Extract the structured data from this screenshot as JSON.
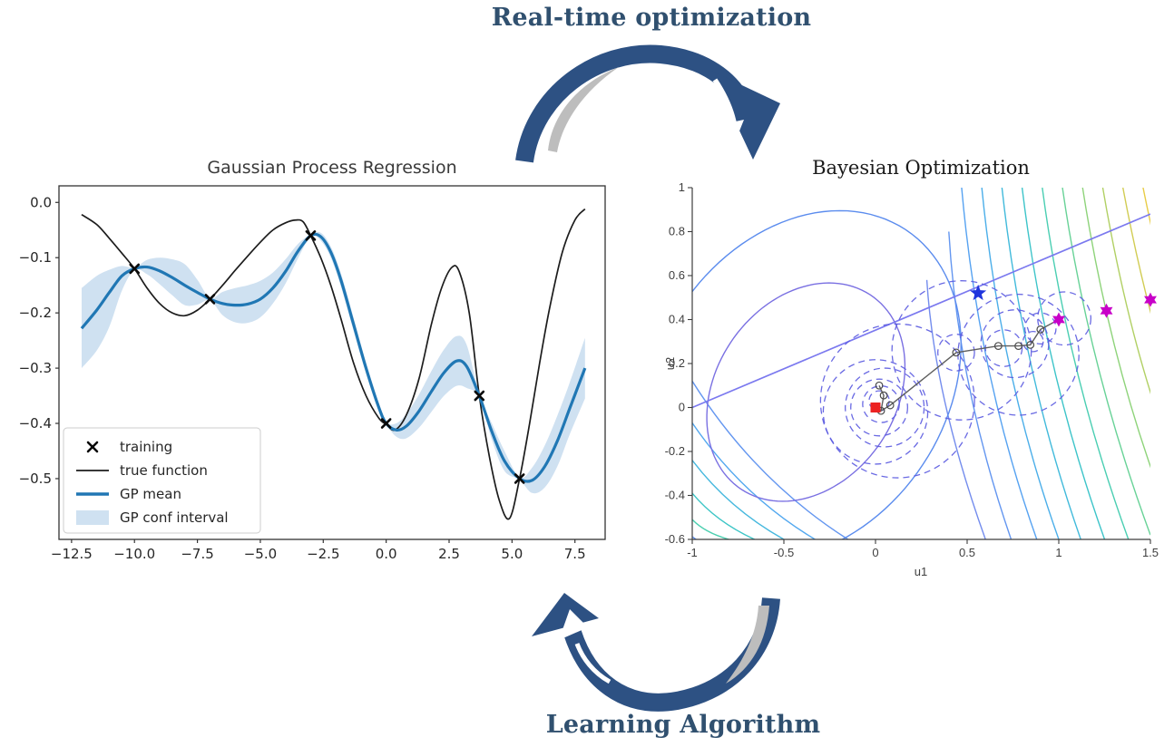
{
  "banners": {
    "top_label": "Real-time optimization",
    "bottom_label": "Learning Algorithm"
  },
  "palette": {
    "banner_text": "#30506f",
    "arrow_navy": "#2d5183",
    "arrow_swoosh": "#bdbdbd",
    "gp_mean": "#2077b4",
    "gp_band": "#cfe1f1",
    "gp_true": "#1c1c1c",
    "bo_dashed_circle": "#5a5ae0",
    "bo_constraint_line": "#7b79ef",
    "bo_path": "#5e5e5e",
    "bo_start_square": "#ec2222",
    "bo_blue_star": "#1f35dd",
    "bo_magenta_star": "#c800c8"
  },
  "chart_data": [
    {
      "type": "line",
      "title": "Gaussian Process Regression",
      "xlabel": "",
      "ylabel": "",
      "xlim": [
        -13.0,
        8.7
      ],
      "ylim": [
        -0.61,
        0.03
      ],
      "grid": false,
      "legend_position": "lower left",
      "xticks": [
        {
          "v": -12.5,
          "label": "−12.5"
        },
        {
          "v": -10.0,
          "label": "−10.0"
        },
        {
          "v": -7.5,
          "label": "−7.5"
        },
        {
          "v": -5.0,
          "label": "−5.0"
        },
        {
          "v": -2.5,
          "label": "−2.5"
        },
        {
          "v": 0.0,
          "label": "0.0"
        },
        {
          "v": 2.5,
          "label": "2.5"
        },
        {
          "v": 5.0,
          "label": "5.0"
        },
        {
          "v": 7.5,
          "label": "7.5"
        }
      ],
      "yticks": [
        {
          "v": 0.0,
          "label": "0.0"
        },
        {
          "v": -0.1,
          "label": "−0.1"
        },
        {
          "v": -0.2,
          "label": "−0.2"
        },
        {
          "v": -0.3,
          "label": "−0.3"
        },
        {
          "v": -0.4,
          "label": "−0.4"
        },
        {
          "v": -0.5,
          "label": "−0.5"
        }
      ],
      "legend": [
        "training",
        "true function",
        "GP mean",
        "GP conf interval"
      ],
      "training_points": [
        [
          -10,
          -0.12
        ],
        [
          -7,
          -0.175
        ],
        [
          -3,
          -0.06
        ],
        [
          0,
          -0.4
        ],
        [
          3.7,
          -0.35
        ],
        [
          5.3,
          -0.5
        ]
      ],
      "true_function": [
        [
          -12.1,
          -0.022
        ],
        [
          -11.5,
          -0.04
        ],
        [
          -11,
          -0.065
        ],
        [
          -10.5,
          -0.092
        ],
        [
          -10,
          -0.12
        ],
        [
          -9.5,
          -0.155
        ],
        [
          -9,
          -0.183
        ],
        [
          -8.5,
          -0.2
        ],
        [
          -8,
          -0.205
        ],
        [
          -7.5,
          -0.195
        ],
        [
          -7,
          -0.175
        ],
        [
          -6.5,
          -0.15
        ],
        [
          -6,
          -0.123
        ],
        [
          -5.5,
          -0.097
        ],
        [
          -5,
          -0.072
        ],
        [
          -4.5,
          -0.05
        ],
        [
          -4,
          -0.037
        ],
        [
          -3.6,
          -0.032
        ],
        [
          -3.3,
          -0.035
        ],
        [
          -3,
          -0.06
        ],
        [
          -2.6,
          -0.1
        ],
        [
          -2.2,
          -0.15
        ],
        [
          -1.8,
          -0.21
        ],
        [
          -1.3,
          -0.29
        ],
        [
          -0.8,
          -0.35
        ],
        [
          -0.3,
          -0.39
        ],
        [
          0,
          -0.402
        ],
        [
          0.35,
          -0.412
        ],
        [
          0.8,
          -0.385
        ],
        [
          1.3,
          -0.32
        ],
        [
          1.8,
          -0.22
        ],
        [
          2.2,
          -0.155
        ],
        [
          2.6,
          -0.118
        ],
        [
          2.9,
          -0.125
        ],
        [
          3.3,
          -0.2
        ],
        [
          3.7,
          -0.35
        ],
        [
          4.1,
          -0.46
        ],
        [
          4.5,
          -0.54
        ],
        [
          4.9,
          -0.572
        ],
        [
          5.3,
          -0.5
        ],
        [
          5.7,
          -0.4
        ],
        [
          6.1,
          -0.29
        ],
        [
          6.5,
          -0.19
        ],
        [
          7,
          -0.09
        ],
        [
          7.5,
          -0.032
        ],
        [
          7.9,
          -0.012
        ]
      ],
      "gp_mean": [
        [
          -12.1,
          -0.228
        ],
        [
          -11.5,
          -0.195
        ],
        [
          -11,
          -0.163
        ],
        [
          -10.5,
          -0.133
        ],
        [
          -10,
          -0.12
        ],
        [
          -9.5,
          -0.117
        ],
        [
          -9,
          -0.124
        ],
        [
          -8.5,
          -0.136
        ],
        [
          -8,
          -0.15
        ],
        [
          -7.5,
          -0.163
        ],
        [
          -7,
          -0.175
        ],
        [
          -6.5,
          -0.183
        ],
        [
          -6,
          -0.186
        ],
        [
          -5.5,
          -0.184
        ],
        [
          -5,
          -0.175
        ],
        [
          -4.5,
          -0.155
        ],
        [
          -4,
          -0.125
        ],
        [
          -3.5,
          -0.088
        ],
        [
          -3,
          -0.06
        ],
        [
          -2.6,
          -0.062
        ],
        [
          -2.2,
          -0.09
        ],
        [
          -1.8,
          -0.14
        ],
        [
          -1.3,
          -0.22
        ],
        [
          -0.8,
          -0.3
        ],
        [
          -0.3,
          -0.37
        ],
        [
          0,
          -0.4
        ],
        [
          0.4,
          -0.412
        ],
        [
          0.8,
          -0.405
        ],
        [
          1.3,
          -0.378
        ],
        [
          1.8,
          -0.342
        ],
        [
          2.3,
          -0.308
        ],
        [
          2.8,
          -0.287
        ],
        [
          3.2,
          -0.297
        ],
        [
          3.7,
          -0.35
        ],
        [
          4.2,
          -0.415
        ],
        [
          4.7,
          -0.468
        ],
        [
          5.3,
          -0.5
        ],
        [
          5.8,
          -0.503
        ],
        [
          6.3,
          -0.478
        ],
        [
          6.8,
          -0.432
        ],
        [
          7.3,
          -0.372
        ],
        [
          7.9,
          -0.3
        ]
      ],
      "gp_conf_interval": [
        [
          -12.1,
          -0.155,
          -0.3
        ],
        [
          -11.5,
          -0.133,
          -0.268
        ],
        [
          -11,
          -0.122,
          -0.225
        ],
        [
          -10.5,
          -0.115,
          -0.16
        ],
        [
          -10,
          -0.118,
          -0.122
        ],
        [
          -9.5,
          -0.104,
          -0.13
        ],
        [
          -9,
          -0.1,
          -0.148
        ],
        [
          -8.5,
          -0.103,
          -0.168
        ],
        [
          -8,
          -0.112,
          -0.186
        ],
        [
          -7.5,
          -0.14,
          -0.185
        ],
        [
          -7,
          -0.173,
          -0.177
        ],
        [
          -6.5,
          -0.162,
          -0.204
        ],
        [
          -6,
          -0.155,
          -0.217
        ],
        [
          -5.5,
          -0.15,
          -0.218
        ],
        [
          -5,
          -0.142,
          -0.208
        ],
        [
          -4.5,
          -0.127,
          -0.183
        ],
        [
          -4,
          -0.103,
          -0.147
        ],
        [
          -3.5,
          -0.075,
          -0.101
        ],
        [
          -3,
          -0.058,
          -0.062
        ],
        [
          -2.6,
          -0.055,
          -0.069
        ],
        [
          -2.2,
          -0.08,
          -0.1
        ],
        [
          -1.8,
          -0.128,
          -0.152
        ],
        [
          -1.3,
          -0.208,
          -0.232
        ],
        [
          -0.8,
          -0.29,
          -0.31
        ],
        [
          -0.3,
          -0.362,
          -0.378
        ],
        [
          0,
          -0.398,
          -0.402
        ],
        [
          0.4,
          -0.4,
          -0.424
        ],
        [
          0.8,
          -0.383,
          -0.427
        ],
        [
          1.3,
          -0.348,
          -0.408
        ],
        [
          1.8,
          -0.305,
          -0.379
        ],
        [
          2.3,
          -0.266,
          -0.35
        ],
        [
          2.8,
          -0.242,
          -0.332
        ],
        [
          3.2,
          -0.258,
          -0.336
        ],
        [
          3.7,
          -0.347,
          -0.353
        ],
        [
          4.2,
          -0.4,
          -0.43
        ],
        [
          4.7,
          -0.45,
          -0.486
        ],
        [
          5.3,
          -0.498,
          -0.502
        ],
        [
          5.8,
          -0.48,
          -0.526
        ],
        [
          6.3,
          -0.44,
          -0.516
        ],
        [
          6.8,
          -0.386,
          -0.478
        ],
        [
          7.3,
          -0.325,
          -0.419
        ],
        [
          7.9,
          -0.245,
          -0.355
        ]
      ]
    },
    {
      "type": "scatter",
      "title": "Bayesian Optimization",
      "xlabel": "u1",
      "ylabel": "u2",
      "xlim": [
        -1,
        1.5
      ],
      "ylim": [
        -0.6,
        1
      ],
      "grid": false,
      "xticks": [
        {
          "v": -1,
          "label": "-1"
        },
        {
          "v": -0.5,
          "label": "-0.5"
        },
        {
          "v": 0,
          "label": "0"
        },
        {
          "v": 0.5,
          "label": "0.5"
        },
        {
          "v": 1,
          "label": "1"
        },
        {
          "v": 1.5,
          "label": "1.5"
        }
      ],
      "yticks": [
        {
          "v": 1,
          "label": "1"
        },
        {
          "v": 0.8,
          "label": "0.8"
        },
        {
          "v": 0.6,
          "label": "0.6"
        },
        {
          "v": 0.4,
          "label": "0.4"
        },
        {
          "v": 0.2,
          "label": "0.2"
        },
        {
          "v": 0,
          "label": "0"
        },
        {
          "v": -0.2,
          "label": "-0.2"
        },
        {
          "v": -0.4,
          "label": "-0.4"
        },
        {
          "v": -0.6,
          "label": "-0.6"
        }
      ],
      "contour_loops": [
        {
          "cx": -0.38,
          "cy": 0.07,
          "rx": 0.58,
          "ry": 0.45,
          "rot": 35,
          "color": "#7a70e2"
        },
        {
          "cx": -0.4,
          "cy": 0.1,
          "rx": 0.93,
          "ry": 0.72,
          "rot": 35,
          "color": "#5b8cee"
        }
      ],
      "contour_arcs_right": [
        {
          "from": [
            0.28,
            0.58
          ],
          "ctrl": [
            0.32,
            0.05
          ],
          "to": [
            0.6,
            -0.6
          ],
          "color": "#6b86ec"
        },
        {
          "from": [
            0.4,
            0.8
          ],
          "ctrl": [
            0.45,
            0.1
          ],
          "to": [
            0.74,
            -0.6
          ],
          "color": "#5b90ef"
        },
        {
          "from": [
            0.47,
            1.0
          ],
          "ctrl": [
            0.56,
            0.15
          ],
          "to": [
            0.88,
            -0.6
          ],
          "color": "#4d9df0"
        },
        {
          "from": [
            0.58,
            1.0
          ],
          "ctrl": [
            0.68,
            0.15
          ],
          "to": [
            1.0,
            -0.6
          ],
          "color": "#41aae8"
        },
        {
          "from": [
            0.69,
            1.0
          ],
          "ctrl": [
            0.8,
            0.16
          ],
          "to": [
            1.12,
            -0.6
          ],
          "color": "#37b6d9"
        },
        {
          "from": [
            0.8,
            1.0
          ],
          "ctrl": [
            0.92,
            0.17
          ],
          "to": [
            1.25,
            -0.6
          ],
          "color": "#33c1c6"
        },
        {
          "from": [
            0.91,
            1.0
          ],
          "ctrl": [
            1.04,
            0.18
          ],
          "to": [
            1.38,
            -0.6
          ],
          "color": "#40cbae"
        },
        {
          "from": [
            1.02,
            1.0
          ],
          "ctrl": [
            1.16,
            0.19
          ],
          "to": [
            1.5,
            -0.58
          ],
          "color": "#60d091"
        },
        {
          "from": [
            1.13,
            1.0
          ],
          "ctrl": [
            1.28,
            0.2
          ],
          "to": [
            1.58,
            -0.45
          ],
          "color": "#88d173"
        },
        {
          "from": [
            1.24,
            1.0
          ],
          "ctrl": [
            1.4,
            0.22
          ],
          "to": [
            1.66,
            -0.3
          ],
          "color": "#adcd5c"
        },
        {
          "from": [
            1.35,
            1.0
          ],
          "ctrl": [
            1.52,
            0.25
          ],
          "to": [
            1.74,
            -0.15
          ],
          "color": "#cfc94a"
        },
        {
          "from": [
            1.46,
            1.0
          ],
          "ctrl": [
            1.63,
            0.3
          ],
          "to": [
            1.82,
            0.0
          ],
          "color": "#e7c93c"
        },
        {
          "from": [
            1.56,
            1.0
          ],
          "ctrl": [
            1.74,
            0.38
          ],
          "to": [
            1.9,
            0.15
          ],
          "color": "#f2d434"
        }
      ],
      "contour_arcs_lowerleft": [
        {
          "from": [
            -1,
            0.12
          ],
          "ctrl": [
            -0.66,
            -0.33
          ],
          "to": [
            -0.15,
            -0.6
          ],
          "color": "#5b90ef"
        },
        {
          "from": [
            -1,
            -0.07
          ],
          "ctrl": [
            -0.73,
            -0.4
          ],
          "to": [
            -0.33,
            -0.6
          ],
          "color": "#4aa3ee"
        },
        {
          "from": [
            -1,
            -0.24
          ],
          "ctrl": [
            -0.8,
            -0.46
          ],
          "to": [
            -0.5,
            -0.6
          ],
          "color": "#3cb4dc"
        },
        {
          "from": [
            -1,
            -0.39
          ],
          "ctrl": [
            -0.87,
            -0.52
          ],
          "to": [
            -0.66,
            -0.6
          ],
          "color": "#32c2c3"
        },
        {
          "from": [
            -1,
            -0.51
          ],
          "ctrl": [
            -0.93,
            -0.57
          ],
          "to": [
            -0.8,
            -0.6
          ],
          "color": "#40ccab"
        }
      ],
      "constraint_line": [
        [
          -1,
          0
        ],
        [
          1.5,
          0.88
        ]
      ],
      "trust_regions": [
        {
          "cx": 0.02,
          "cy": 0.03,
          "r": 0.055
        },
        {
          "cx": 0.03,
          "cy": 0.015,
          "r": 0.1
        },
        {
          "cx": 0.02,
          "cy": 0.0,
          "r": 0.155
        },
        {
          "cx": 0.05,
          "cy": 0.0,
          "r": 0.215
        },
        {
          "cx": 0.0,
          "cy": -0.02,
          "r": 0.285
        },
        {
          "cx": 0.12,
          "cy": 0.03,
          "r": 0.42
        },
        {
          "cx": 0.44,
          "cy": 0.25,
          "r": 0.1
        },
        {
          "cx": 0.47,
          "cy": 0.26,
          "r": 0.38
        },
        {
          "cx": 0.7,
          "cy": 0.27,
          "r": 0.1
        },
        {
          "cx": 0.76,
          "cy": 0.29,
          "r": 0.185
        },
        {
          "cx": 0.78,
          "cy": 0.24,
          "r": 0.33
        },
        {
          "cx": 0.86,
          "cy": 0.3,
          "r": 0.055
        },
        {
          "cx": 0.9,
          "cy": 0.36,
          "r": 0.085
        },
        {
          "cx": 1.03,
          "cy": 0.405,
          "r": 0.145
        }
      ],
      "search_path": [
        [
          0.02,
          0.1
        ],
        [
          0.045,
          0.055
        ],
        [
          0.03,
          -0.015
        ],
        [
          0.08,
          0.01
        ],
        [
          0.44,
          0.25
        ],
        [
          0.67,
          0.28
        ],
        [
          0.78,
          0.28
        ],
        [
          0.845,
          0.285
        ],
        [
          0.9,
          0.355
        ],
        [
          1.0,
          0.4
        ]
      ],
      "start_point": {
        "x": 0,
        "y": 0
      },
      "incumbent_star": {
        "x": 0.56,
        "y": 0.52
      },
      "optima_stars": [
        [
          1.0,
          0.4
        ],
        [
          1.26,
          0.44
        ],
        [
          1.5,
          0.49
        ]
      ]
    }
  ]
}
